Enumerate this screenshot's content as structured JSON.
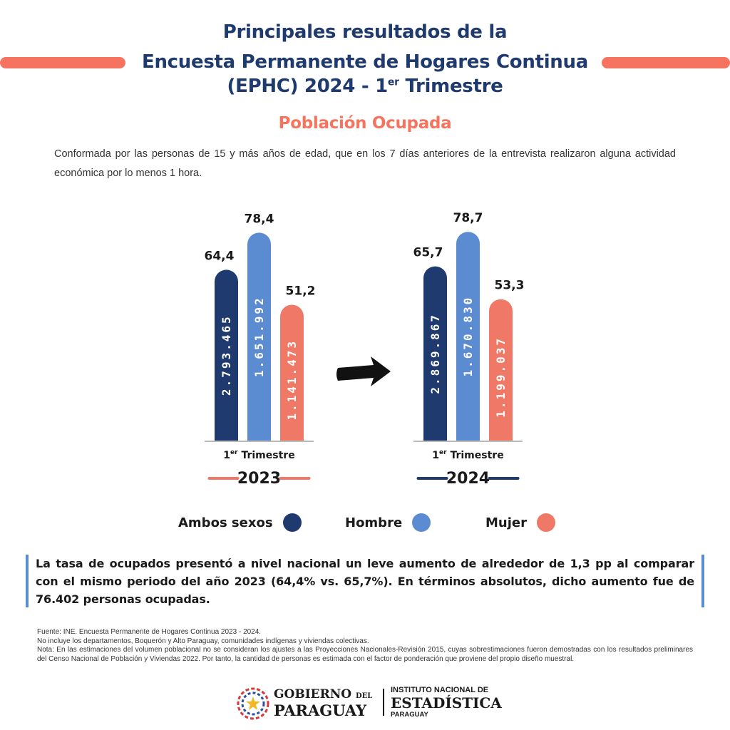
{
  "header": {
    "line1": "Principales resultados de la",
    "line2": "Encuesta Permanente de Hogares Continua",
    "line3_pre": "(EPHC) 2024 - 1",
    "line3_sup": "er",
    "line3_post": " Trimestre"
  },
  "section_title": "Población Ocupada",
  "definition": "Conformada por las personas de 15 y más años de edad, que en los 7 días anteriores de la entrevista realizaron alguna actividad económica por lo menos 1 hora.",
  "colors": {
    "navy": "#1e3a6e",
    "blue": "#5b8bd0",
    "coral": "#f07866",
    "accent_orange": "#f5735f",
    "title": "#1e3a6e"
  },
  "chart_data": [
    {
      "type": "bar",
      "period_prefix": "1",
      "period_sup": "er",
      "period_label": " Trimestre",
      "year": "2023",
      "categories": [
        "Ambos sexos",
        "Hombre",
        "Mujer"
      ],
      "values": [
        64.4,
        78.4,
        51.2
      ],
      "value_labels": [
        "64,4",
        "78,4",
        "51,2"
      ],
      "counts": [
        "2.793.465",
        "1.651.992",
        "1.141.473"
      ],
      "colors": [
        "#1e3a6e",
        "#5b8bd0",
        "#f07866"
      ]
    },
    {
      "type": "bar",
      "period_prefix": "1",
      "period_sup": "er",
      "period_label": " Trimestre",
      "year": "2024",
      "categories": [
        "Ambos sexos",
        "Hombre",
        "Mujer"
      ],
      "values": [
        65.7,
        78.7,
        53.3
      ],
      "value_labels": [
        "65,7",
        "78,7",
        "53,3"
      ],
      "counts": [
        "2.869.867",
        "1.670.830",
        "1.199.037"
      ],
      "colors": [
        "#1e3a6e",
        "#5b8bd0",
        "#f07866"
      ]
    }
  ],
  "legend": [
    {
      "label": "Ambos sexos",
      "color": "#1e3a6e"
    },
    {
      "label": "Hombre",
      "color": "#5b8bd0"
    },
    {
      "label": "Mujer",
      "color": "#f07866"
    }
  ],
  "summary": "La tasa de ocupados presentó a nivel nacional un leve aumento  de alrededor de 1,3 pp al comparar con el mismo periodo del año 2023 (64,4% vs. 65,7%). En términos absolutos, dicho aumento fue de 76.402 personas ocupadas.",
  "notes": {
    "source": "Fuente: INE. Encuesta Permanente de Hogares Continua 2023 - 2024.",
    "exclusion": "No incluye los departamentos, Boquerón y Alto Paraguay, comunidades indígenas y viviendas colectivas.",
    "note": "Nota: En las estimaciones del volumen poblacional no se consideran los ajustes a las Proyecciones Nacionales-Revisión 2015, cuyas sobrestimaciones fueron demostradas con los resultados preliminares del Censo Nacional de Población y Viviendas 2022. Por tanto, la cantidad de personas es estimada con el factor de ponderación que proviene del propio diseño muestral."
  },
  "footer": {
    "gov_line1": "GOBIERNO",
    "gov_del": "DEL",
    "gov_line2": "PARAGUAY",
    "ine_line1": "INSTITUTO NACIONAL DE",
    "ine_line2": "ESTADÍSTICA",
    "ine_line3": "PARAGUAY"
  }
}
